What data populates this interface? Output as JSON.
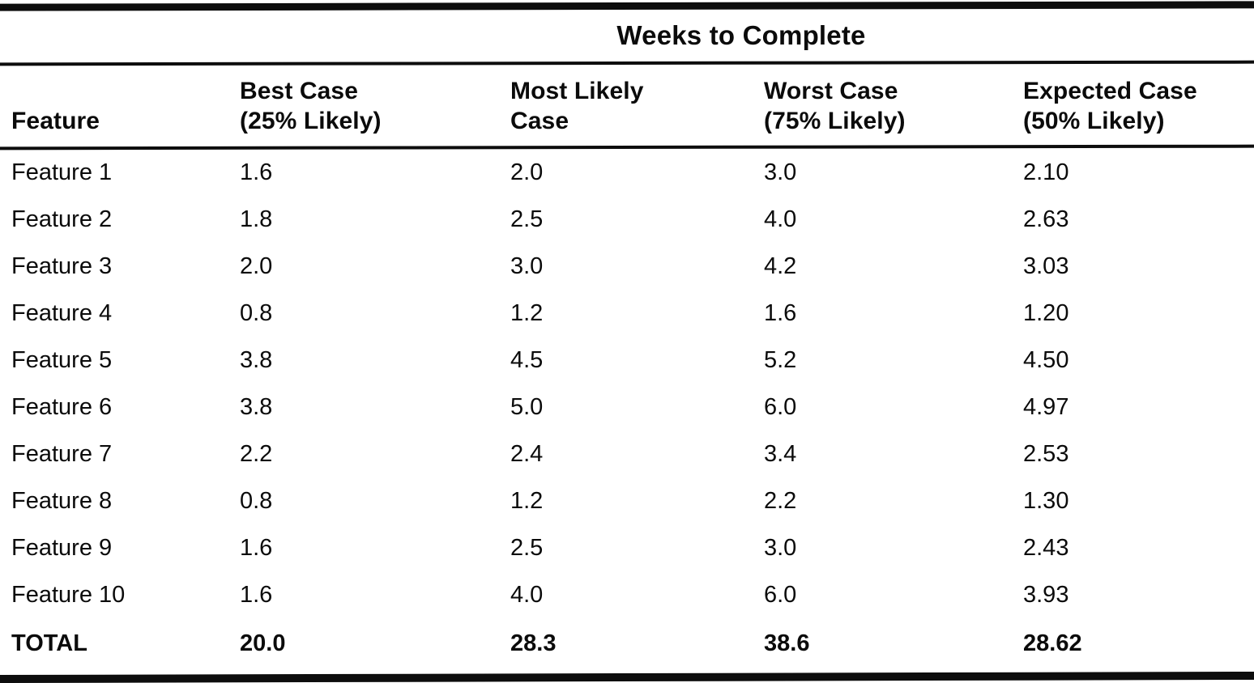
{
  "table": {
    "spanning_header": "Weeks to Complete",
    "columns": [
      {
        "label": "Feature"
      },
      {
        "line1": "Best Case",
        "line2": "(25% Likely)"
      },
      {
        "line1": "Most Likely",
        "line2": "Case"
      },
      {
        "line1": "Worst Case",
        "line2": "(75% Likely)"
      },
      {
        "line1": "Expected Case",
        "line2": "(50% Likely)"
      }
    ],
    "rows": [
      {
        "feature": "Feature 1",
        "best": "1.6",
        "most_likely": "2.0",
        "worst": "3.0",
        "expected": "2.10"
      },
      {
        "feature": "Feature 2",
        "best": "1.8",
        "most_likely": "2.5",
        "worst": "4.0",
        "expected": "2.63"
      },
      {
        "feature": "Feature 3",
        "best": "2.0",
        "most_likely": "3.0",
        "worst": "4.2",
        "expected": "3.03"
      },
      {
        "feature": "Feature 4",
        "best": "0.8",
        "most_likely": "1.2",
        "worst": "1.6",
        "expected": "1.20"
      },
      {
        "feature": "Feature 5",
        "best": "3.8",
        "most_likely": "4.5",
        "worst": "5.2",
        "expected": "4.50"
      },
      {
        "feature": "Feature 6",
        "best": "3.8",
        "most_likely": "5.0",
        "worst": "6.0",
        "expected": "4.97"
      },
      {
        "feature": "Feature 7",
        "best": "2.2",
        "most_likely": "2.4",
        "worst": "3.4",
        "expected": "2.53"
      },
      {
        "feature": "Feature 8",
        "best": "0.8",
        "most_likely": "1.2",
        "worst": "2.2",
        "expected": "1.30"
      },
      {
        "feature": "Feature 9",
        "best": "1.6",
        "most_likely": "2.5",
        "worst": "3.0",
        "expected": "2.43"
      },
      {
        "feature": "Feature 10",
        "best": "1.6",
        "most_likely": "4.0",
        "worst": "6.0",
        "expected": "3.93"
      }
    ],
    "total_row": {
      "feature": "TOTAL",
      "best": "20.0",
      "most_likely": "28.3",
      "worst": "38.6",
      "expected": "28.62"
    }
  },
  "colors": {
    "ink": "#0d0d0d",
    "paper": "#ffffff"
  }
}
